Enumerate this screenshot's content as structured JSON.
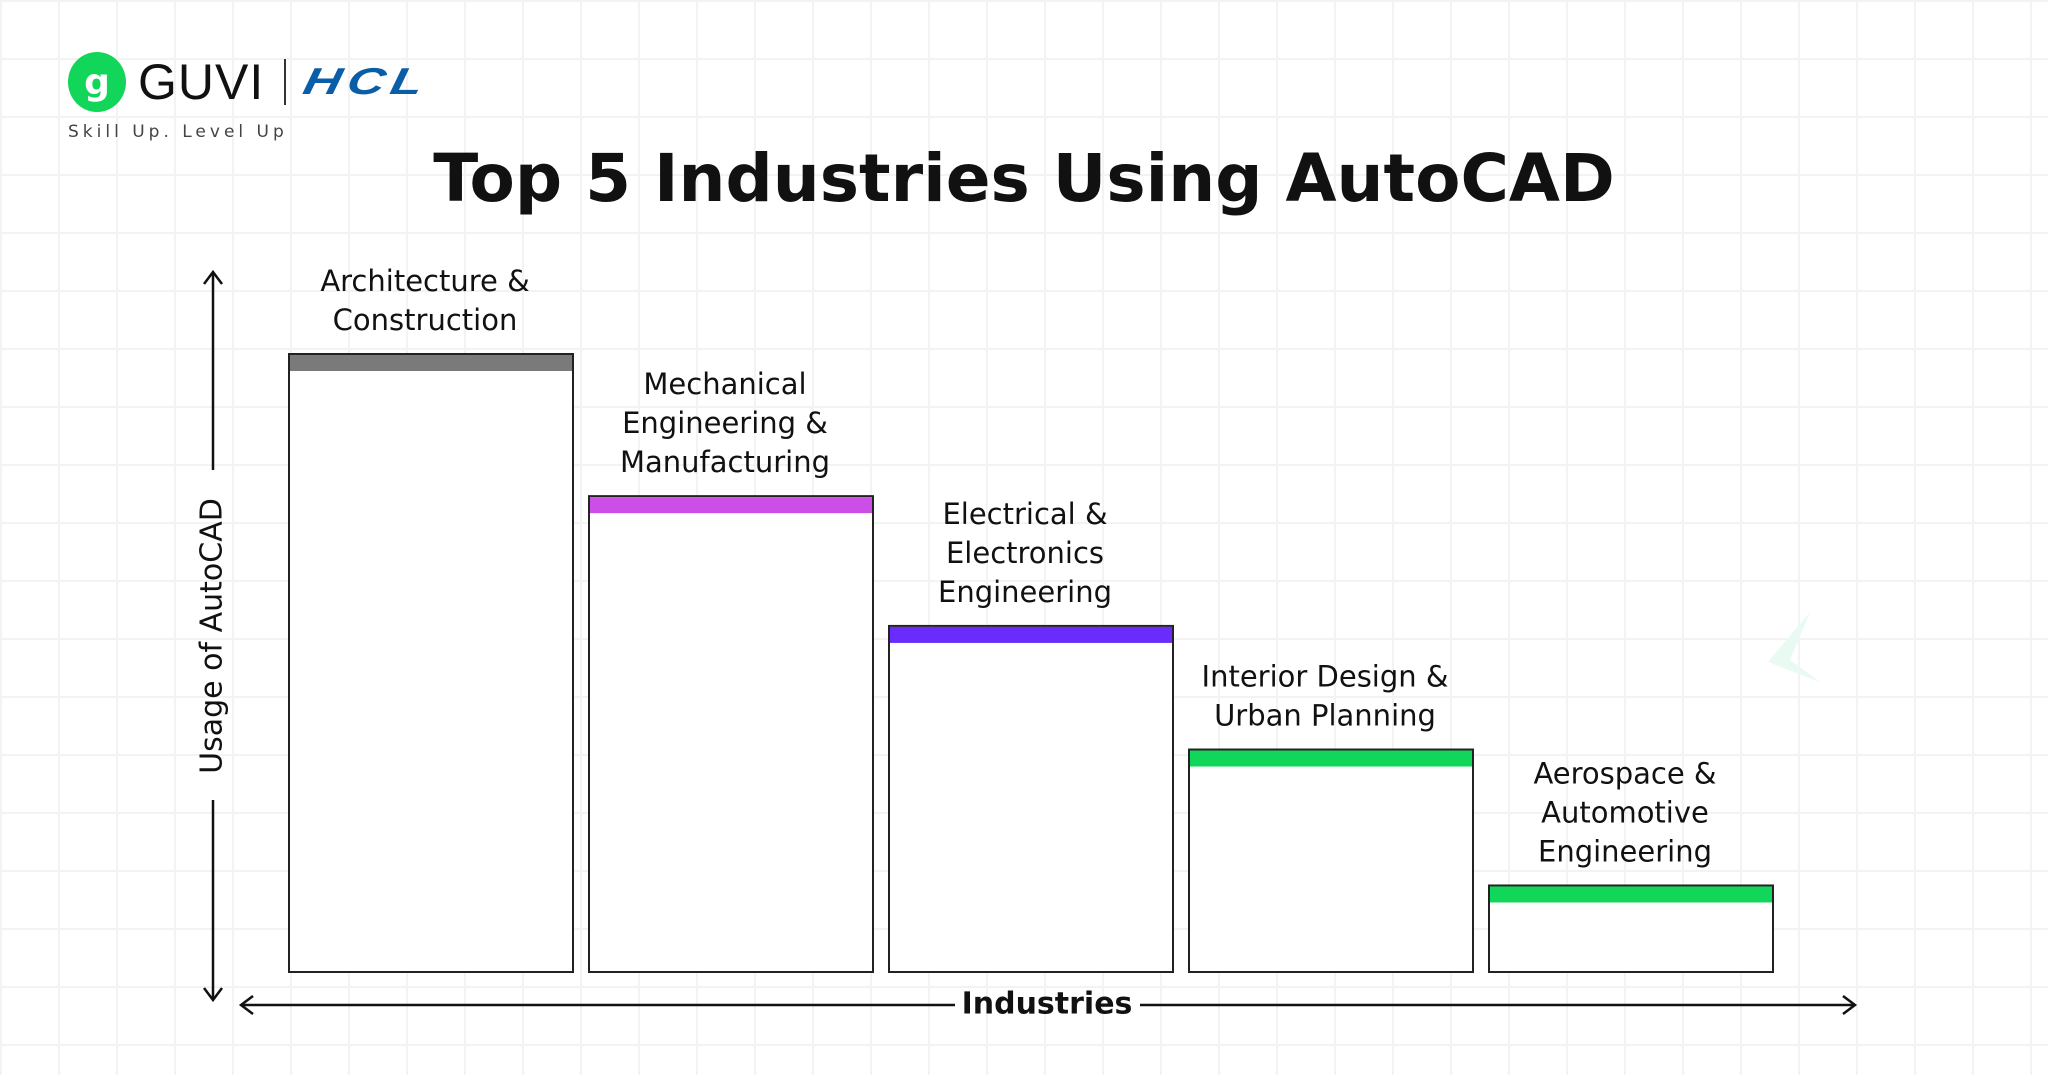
{
  "brand": {
    "guvi_mark": "g",
    "guvi": "GUVI",
    "hcl": "HCL",
    "tagline": "Skill Up. Level Up"
  },
  "chart_data": {
    "type": "bar",
    "title": "Top 5 Industries Using AutoCAD",
    "xlabel": "Industries",
    "ylabel": "Usage of AutoCAD",
    "categories": [
      [
        "Architecture &",
        "Construction"
      ],
      [
        "Mechanical",
        "Engineering &",
        "Manufacturing"
      ],
      [
        "Electrical &",
        "Electronics",
        "Engineering"
      ],
      [
        "Interior Design &",
        "Urban Planning"
      ],
      [
        "Aerospace &",
        "Automotive",
        "Engineering"
      ]
    ],
    "values": [
      100,
      77,
      56,
      36,
      14
    ],
    "value_unit": "relative usage (no numeric scale shown)",
    "ylim": [
      0,
      100
    ],
    "grid": false,
    "colors": [
      "#7a7a7a",
      "#cb4fe6",
      "#6a2cfb",
      "#12d659",
      "#12d659"
    ]
  }
}
